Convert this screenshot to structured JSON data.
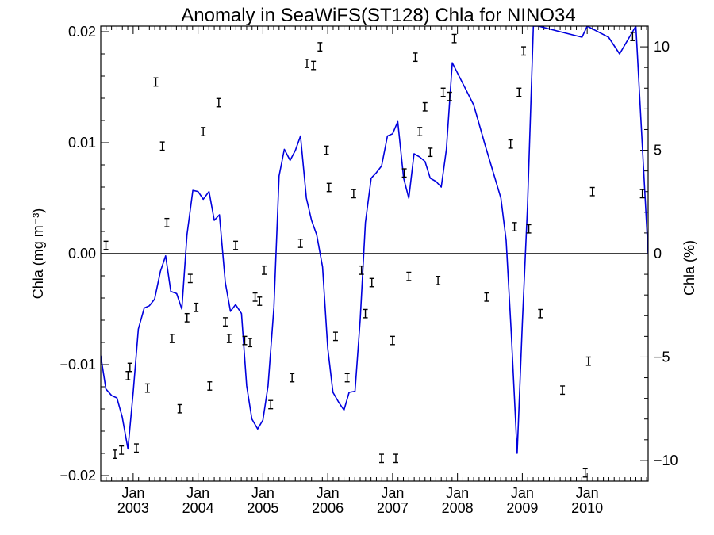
{
  "chart_data": {
    "type": "line",
    "title": "Anomaly in SeaWiFS(ST128) Chla for NINO34",
    "ylabel_left": "Chla (mg m⁻³)",
    "ylabel_right": "Chla (%)",
    "xlabel": "",
    "x_unit": "decimal year",
    "xlim": [
      2002.5,
      2010.94
    ],
    "ylim_left": [
      -0.0205,
      0.0205
    ],
    "ylim_right": [
      -11,
      11
    ],
    "yticks_left": [
      {
        "value": -0.02,
        "label": "−0.02"
      },
      {
        "value": -0.01,
        "label": "−0.01"
      },
      {
        "value": 0.0,
        "label": "0.00"
      },
      {
        "value": 0.01,
        "label": "0.01"
      },
      {
        "value": 0.02,
        "label": "0.02"
      }
    ],
    "yticks_right": [
      {
        "value": -10,
        "label": "−10"
      },
      {
        "value": -5,
        "label": "−5"
      },
      {
        "value": 0,
        "label": "0"
      },
      {
        "value": 5,
        "label": "5"
      },
      {
        "value": 10,
        "label": "10"
      }
    ],
    "xticks": [
      {
        "value": 2003.0,
        "month": "Jan",
        "year": "2003"
      },
      {
        "value": 2004.0,
        "month": "Jan",
        "year": "2004"
      },
      {
        "value": 2005.0,
        "month": "Jan",
        "year": "2005"
      },
      {
        "value": 2006.0,
        "month": "Jan",
        "year": "2006"
      },
      {
        "value": 2007.0,
        "month": "Jan",
        "year": "2007"
      },
      {
        "value": 2008.0,
        "month": "Jan",
        "year": "2008"
      },
      {
        "value": 2009.0,
        "month": "Jan",
        "year": "2009"
      },
      {
        "value": 2010.0,
        "month": "Jan",
        "year": "2010"
      }
    ],
    "zero_line": true,
    "series": [
      {
        "axis": "left",
        "style": "line",
        "color": "#0000dd",
        "x": [
          2002.5,
          2002.58,
          2002.67,
          2002.75,
          2002.83,
          2002.92,
          2003.0,
          2003.08,
          2003.17,
          2003.25,
          2003.33,
          2003.42,
          2003.5,
          2003.58,
          2003.67,
          2003.75,
          2003.83,
          2003.92,
          2004.0,
          2004.08,
          2004.17,
          2004.25,
          2004.33,
          2004.42,
          2004.5,
          2004.58,
          2004.67,
          2004.75,
          2004.83,
          2004.92,
          2005.0,
          2005.08,
          2005.17,
          2005.25,
          2005.33,
          2005.42,
          2005.5,
          2005.58,
          2005.67,
          2005.75,
          2005.83,
          2005.92,
          2006.0,
          2006.08,
          2006.17,
          2006.25,
          2006.33,
          2006.42,
          2006.5,
          2006.58,
          2006.67,
          2006.75,
          2006.83,
          2006.92,
          2007.0,
          2007.08,
          2007.17,
          2007.25,
          2007.33,
          2007.42,
          2007.5,
          2007.58,
          2007.67,
          2007.75,
          2007.83,
          2007.92,
          2008.25,
          2008.42,
          2008.67,
          2008.75,
          2008.83,
          2008.92,
          2009.0,
          2009.08,
          2009.17,
          2009.25,
          2009.58,
          2009.92,
          2010.0,
          2010.33,
          2010.5,
          2010.75,
          2010.94
        ],
        "y": [
          -0.0092,
          -0.0122,
          -0.0128,
          -0.013,
          -0.0147,
          -0.0176,
          -0.0125,
          -0.0068,
          -0.0049,
          -0.0047,
          -0.0041,
          -0.0016,
          -0.0002,
          -0.0034,
          -0.0036,
          -0.005,
          0.0017,
          0.0057,
          0.0056,
          0.0049,
          0.0056,
          0.003,
          0.0035,
          -0.0026,
          -0.0052,
          -0.0046,
          -0.0054,
          -0.0119,
          -0.0149,
          -0.0158,
          -0.015,
          -0.0119,
          -0.0048,
          0.007,
          0.0094,
          0.0084,
          0.0093,
          0.0106,
          0.005,
          0.003,
          0.0017,
          -0.0012,
          -0.0085,
          -0.0125,
          -0.0134,
          -0.0141,
          -0.0125,
          -0.0124,
          -0.006,
          0.0028,
          0.0068,
          0.0073,
          0.0079,
          0.0106,
          0.0108,
          0.0119,
          0.0068,
          0.005,
          0.009,
          0.0087,
          0.0083,
          0.0068,
          0.0065,
          0.006,
          0.0094,
          0.0172,
          0.0134,
          0.0099,
          0.005,
          0.0012,
          -0.0072,
          -0.018,
          -0.0063,
          0.0042,
          0.0205,
          0.0205,
          0.02,
          0.0195,
          0.0205,
          0.0195,
          0.018,
          0.0205,
          0.0
        ]
      },
      {
        "axis": "right",
        "style": "error_bars",
        "color": "#000000",
        "halfwidth": 0.2,
        "x": [
          2002.58,
          2002.72,
          2002.82,
          2002.92,
          2002.95,
          2003.05,
          2003.22,
          2003.35,
          2003.45,
          2003.52,
          2003.6,
          2003.72,
          2003.83,
          2003.88,
          2003.97,
          2004.08,
          2004.18,
          2004.32,
          2004.42,
          2004.48,
          2004.58,
          2004.72,
          2004.8,
          2004.88,
          2004.95,
          2005.02,
          2005.12,
          2005.45,
          2005.58,
          2005.68,
          2005.78,
          2005.88,
          2005.98,
          2006.02,
          2006.12,
          2006.3,
          2006.4,
          2006.52,
          2006.58,
          2006.68,
          2006.83,
          2007.0,
          2007.05,
          2007.18,
          2007.25,
          2007.35,
          2007.42,
          2007.5,
          2007.58,
          2007.7,
          2007.78,
          2007.88,
          2007.95,
          2008.45,
          2008.82,
          2008.88,
          2008.95,
          2009.02,
          2009.1,
          2009.28,
          2009.62,
          2009.97,
          2010.02,
          2010.08,
          2010.7,
          2010.85
        ],
        "y": [
          0.4,
          -9.7,
          -9.5,
          -5.9,
          -5.5,
          -9.4,
          -6.5,
          8.3,
          5.2,
          1.5,
          -4.1,
          -7.5,
          -3.1,
          -1.2,
          -2.6,
          5.9,
          -6.4,
          7.3,
          -3.3,
          -4.1,
          0.4,
          -4.2,
          -4.3,
          -2.1,
          -2.3,
          -0.8,
          -7.3,
          -6.0,
          0.5,
          9.2,
          9.1,
          10.0,
          5.0,
          3.2,
          -4.0,
          -6.0,
          2.9,
          -0.8,
          -2.9,
          -1.4,
          -9.9,
          -4.2,
          -9.9,
          3.9,
          -1.1,
          9.5,
          5.9,
          7.1,
          4.9,
          -1.3,
          7.8,
          7.6,
          10.4,
          -2.1,
          5.3,
          1.3,
          7.8,
          9.8,
          1.2,
          -2.9,
          -6.6,
          -10.6,
          -5.2,
          3.0,
          10.5,
          2.9
        ]
      }
    ]
  }
}
